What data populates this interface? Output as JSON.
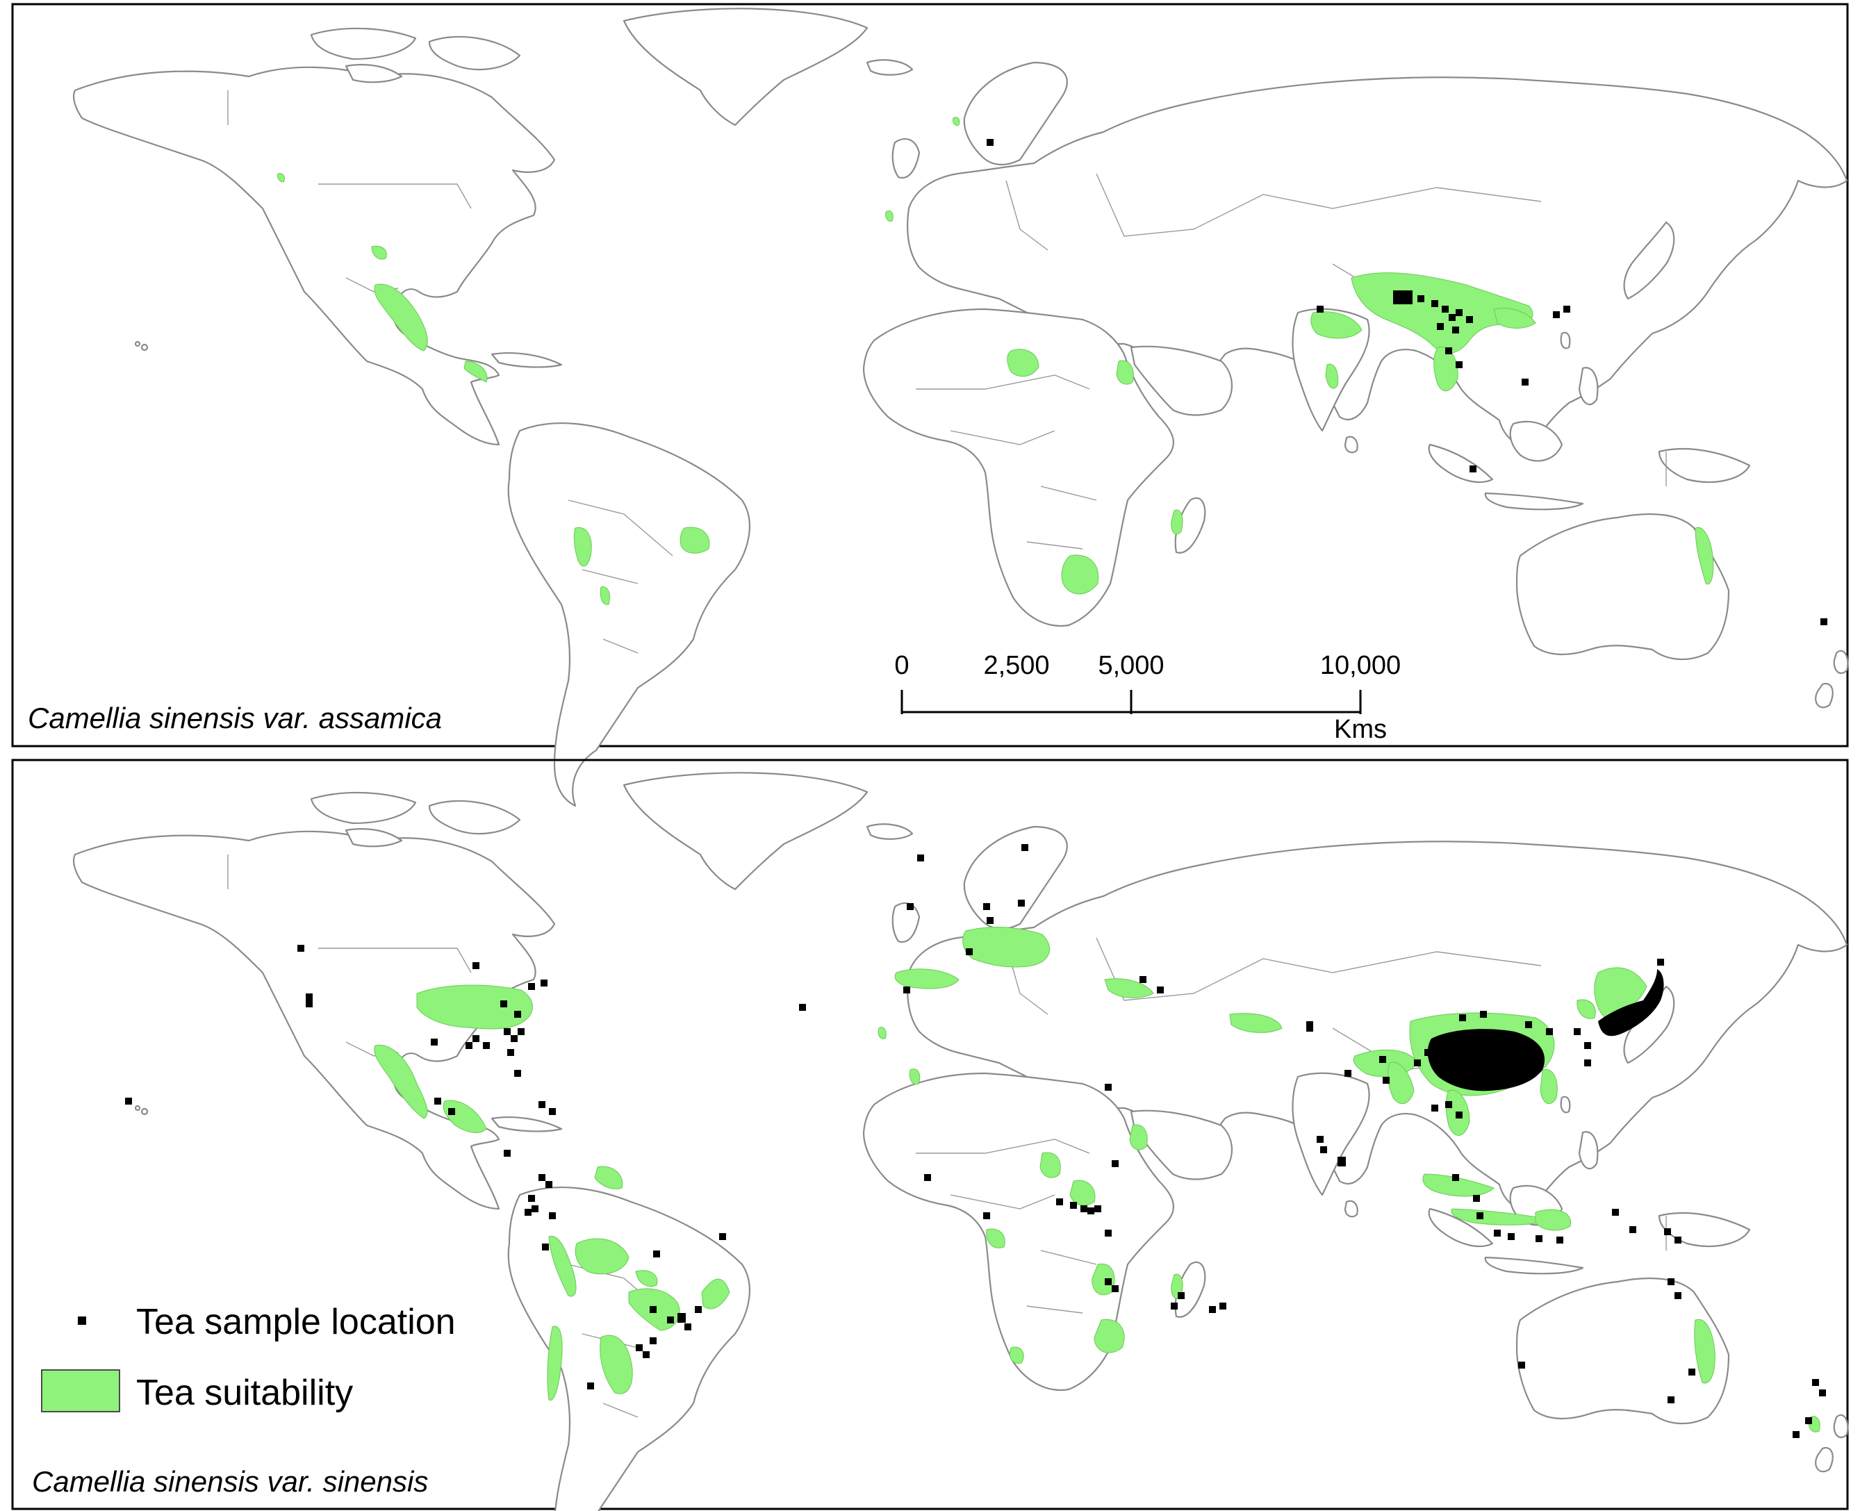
{
  "colors": {
    "suitability": "#8ff27a",
    "sample": "#000000",
    "coastline": "#8a8a8a"
  },
  "panels": [
    {
      "label": "Camellia sinensis var. assamica",
      "suitable_regions": [
        "north-india",
        "assam-myanmar",
        "south-china",
        "indochina",
        "mexico-highlands",
        "central-america",
        "bolivia-andes",
        "southeast-brazil",
        "nigeria-plateau",
        "ethiopia",
        "south-africa",
        "madagascar",
        "east-australia",
        "sri-lanka"
      ],
      "sample_regions": [
        "assam-myanmar",
        "south-china",
        "indochina",
        "taiwan",
        "japan-south"
      ]
    },
    {
      "label": "Camellia sinensis var. sinensis",
      "suitable_regions": [
        "eastern-usa",
        "mexico",
        "central-america",
        "venezuela",
        "peru-andes",
        "southeast-brazil",
        "argentina",
        "chile",
        "central-europe",
        "mediterranean",
        "caucasus",
        "north-india",
        "china",
        "korea-japan",
        "indochina",
        "indonesia",
        "east-africa",
        "south-africa",
        "madagascar",
        "east-australia",
        "new-zealand"
      ],
      "sample_regions": [
        "eastern-usa",
        "california",
        "central-america",
        "colombia",
        "peru",
        "southeast-brazil",
        "argentina",
        "europe",
        "turkey",
        "china",
        "japan",
        "india",
        "sri-lanka",
        "indonesia",
        "east-africa",
        "madagascar",
        "east-australia",
        "new-zealand",
        "hawaii"
      ]
    }
  ],
  "scale_bar": {
    "ticks": [
      "0",
      "2,500",
      "5,000",
      "10,000"
    ],
    "tick_values": [
      0,
      2500,
      5000,
      10000
    ],
    "unit": "Kms"
  },
  "legend": {
    "sample_label": "Tea sample location",
    "suitability_label": "Tea suitability"
  }
}
